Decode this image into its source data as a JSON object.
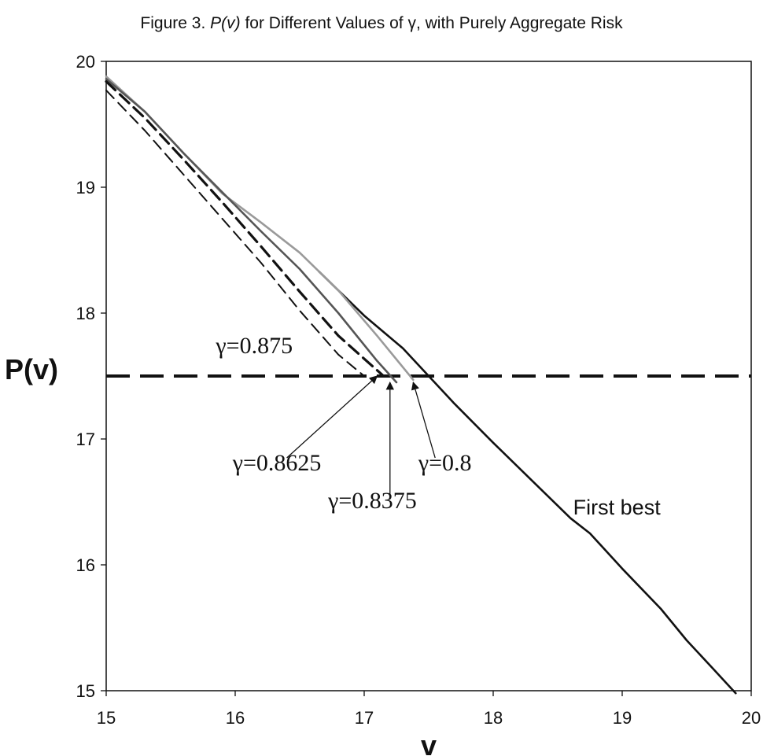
{
  "chart_data": {
    "type": "line",
    "title_parts": {
      "prefix": "Figure 3.  ",
      "italic": "P(v)",
      "suffix": " for Different Values of γ, with Purely Aggregate Risk"
    },
    "xlabel": "v",
    "ylabel": "P(v)",
    "xlim": [
      15,
      20
    ],
    "ylim": [
      15,
      20
    ],
    "xticks": [
      "15",
      "16",
      "17",
      "18",
      "19",
      "20"
    ],
    "yticks": [
      "15",
      "16",
      "17",
      "18",
      "19",
      "20"
    ],
    "grid": false,
    "legend": "none",
    "reference_line": {
      "y": 17.5,
      "style": "dashed"
    },
    "series": [
      {
        "name": "First best",
        "color": "#111111",
        "style": "solid",
        "x": [
          16.65,
          17.0,
          17.3,
          17.5,
          17.7,
          18.0,
          18.3,
          18.6,
          18.75,
          19.0,
          19.3,
          19.5,
          19.7,
          19.88
        ],
        "y": [
          18.33,
          17.98,
          17.72,
          17.5,
          17.28,
          16.97,
          16.67,
          16.37,
          16.25,
          15.97,
          15.65,
          15.4,
          15.18,
          14.98
        ]
      },
      {
        "name": "γ=0.8",
        "color": "#9a9a9a",
        "style": "solid",
        "x": [
          15.0,
          15.3,
          15.6,
          15.9,
          16.2,
          16.5,
          16.8,
          17.1,
          17.38
        ],
        "y": [
          19.88,
          19.6,
          19.27,
          18.95,
          18.72,
          18.48,
          18.18,
          17.82,
          17.47
        ]
      },
      {
        "name": "γ=0.8375",
        "color": "#555555",
        "style": "solid",
        "x": [
          15.0,
          15.3,
          15.6,
          15.9,
          16.2,
          16.5,
          16.8,
          17.1,
          17.25
        ],
        "y": [
          19.86,
          19.6,
          19.27,
          18.96,
          18.65,
          18.35,
          18.0,
          17.62,
          17.45
        ]
      },
      {
        "name": "γ=0.8625",
        "color": "#111111",
        "style": "dashed",
        "x": [
          15.0,
          15.3,
          15.6,
          15.9,
          16.2,
          16.5,
          16.8,
          17.15
        ],
        "y": [
          19.84,
          19.55,
          19.22,
          18.88,
          18.53,
          18.17,
          17.82,
          17.5
        ]
      },
      {
        "name": "γ=0.875",
        "color": "#111111",
        "style": "dashed-thin",
        "x": [
          15.0,
          15.3,
          15.6,
          15.9,
          16.2,
          16.5,
          16.8,
          17.0
        ],
        "y": [
          19.77,
          19.45,
          19.1,
          18.75,
          18.4,
          18.02,
          17.67,
          17.5
        ]
      }
    ],
    "annotations": [
      {
        "text": "γ=0.875",
        "x": 15.85,
        "y": 17.68
      },
      {
        "text": "γ=0.8625",
        "x": 15.98,
        "y": 16.75
      },
      {
        "text": "γ=0.8375",
        "x": 16.72,
        "y": 16.45
      },
      {
        "text": "γ=0.8",
        "x": 17.42,
        "y": 16.75
      },
      {
        "text": "First best",
        "x": 18.62,
        "y": 16.4
      }
    ],
    "arrows": [
      {
        "from": [
          16.4,
          16.85
        ],
        "to": [
          17.1,
          17.5
        ]
      },
      {
        "from": [
          17.2,
          16.55
        ],
        "to": [
          17.2,
          17.45
        ]
      },
      {
        "from": [
          17.55,
          16.85
        ],
        "to": [
          17.38,
          17.45
        ]
      }
    ]
  }
}
